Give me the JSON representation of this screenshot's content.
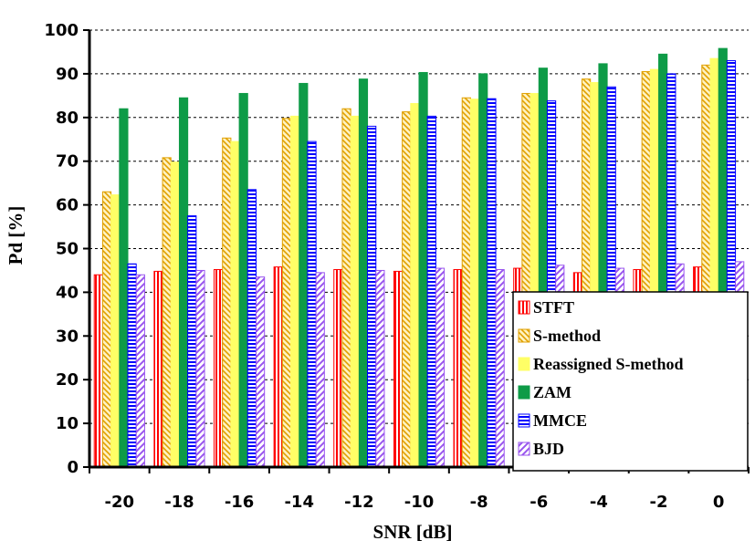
{
  "chart_data": {
    "type": "bar",
    "xlabel": "SNR [dB]",
    "ylabel": "Pd [%]",
    "ylim": [
      0,
      100
    ],
    "yticks": [
      "0",
      "10",
      "20",
      "30",
      "40",
      "50",
      "60",
      "70",
      "80",
      "90",
      "100"
    ],
    "categories": [
      "-20",
      "-18",
      "-16",
      "-14",
      "-12",
      "-10",
      "-8",
      "-6",
      "-4",
      "-2",
      "0"
    ],
    "grid": "horizontal-dashed",
    "legend_position": "bottom-right",
    "series": [
      {
        "name": "STFT",
        "color": "#ff0000",
        "pattern": "vertical-lines",
        "values": [
          44,
          44.8,
          45.2,
          45.8,
          45.2,
          44.8,
          45.2,
          45.5,
          44.5,
          45.2,
          45.8
        ]
      },
      {
        "name": "S-method",
        "color": "#e0a000",
        "pattern": "diagonal-back",
        "values": [
          63,
          70.8,
          75.3,
          79.8,
          82,
          81.3,
          84.5,
          85.5,
          88.8,
          90.5,
          92
        ]
      },
      {
        "name": "Reassigned S-method",
        "color": "#ffff66",
        "pattern": "solid",
        "values": [
          62.3,
          69.8,
          74.5,
          80.3,
          80.3,
          83.2,
          84.2,
          85.5,
          88,
          91,
          93.5
        ]
      },
      {
        "name": "ZAM",
        "color": "#0e9b47",
        "pattern": "solid",
        "values": [
          82,
          84.5,
          85.5,
          87.8,
          88.8,
          90.3,
          90,
          91.3,
          92.3,
          94.5,
          95.8
        ]
      },
      {
        "name": "MMCE",
        "color": "#0000ff",
        "pattern": "horizontal-lines",
        "values": [
          46.5,
          57.5,
          63.5,
          74.5,
          78,
          80.3,
          84.3,
          83.8,
          87,
          90,
          93
        ]
      },
      {
        "name": "BJD",
        "color": "#9955ee",
        "pattern": "diagonal-forward",
        "values": [
          44,
          45,
          43.5,
          44.5,
          45,
          45.5,
          45.2,
          46.2,
          45.5,
          46.5,
          47
        ]
      }
    ]
  }
}
